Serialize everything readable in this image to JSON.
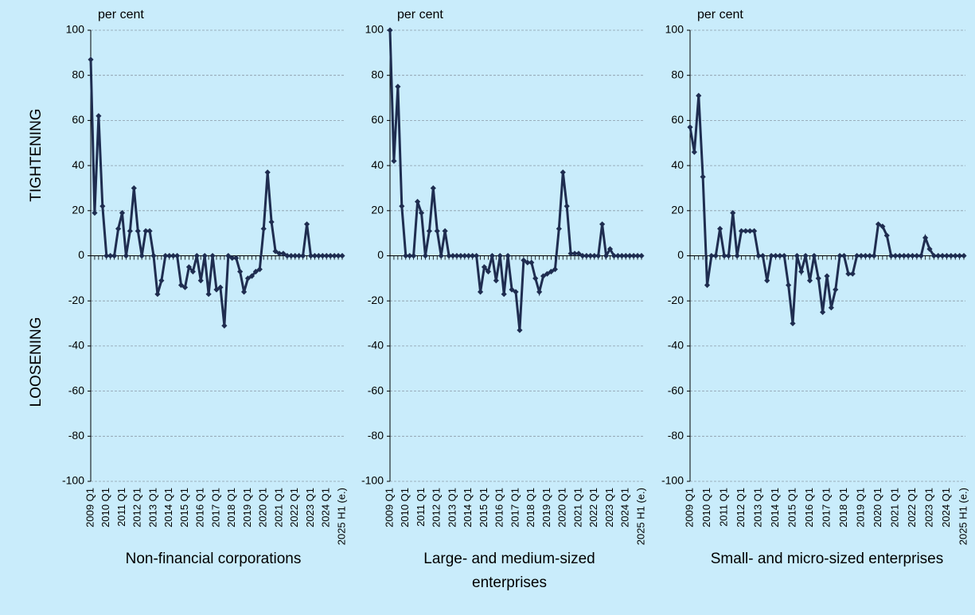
{
  "chart_data": [
    {
      "type": "line",
      "title": "Non-financial corporations",
      "y_unit": "per cent",
      "annotations": [
        "TIGHTENING",
        "LOOSENING"
      ],
      "categories": [
        "2009 Q1",
        null,
        null,
        null,
        "2010 Q1",
        null,
        null,
        null,
        "2011 Q1",
        null,
        null,
        null,
        "2012 Q1",
        null,
        null,
        null,
        "2013 Q1",
        null,
        null,
        null,
        "2014 Q1",
        null,
        null,
        null,
        "2015 Q1",
        null,
        null,
        null,
        "2016 Q1",
        null,
        null,
        null,
        "2017 Q1",
        null,
        null,
        null,
        "2018 Q1",
        null,
        null,
        null,
        "2019 Q1",
        null,
        null,
        null,
        "2020 Q1",
        null,
        null,
        null,
        "2021 Q1",
        null,
        null,
        null,
        "2022 Q1",
        null,
        null,
        null,
        "2023 Q1",
        null,
        null,
        null,
        "2024 Q1",
        null,
        null,
        null,
        "2025 H1 (e.)"
      ],
      "values": [
        87,
        19,
        62,
        22,
        0,
        0,
        0,
        12,
        19,
        0,
        11,
        30,
        11,
        0,
        11,
        11,
        0,
        -17,
        -11,
        0,
        0,
        0,
        0,
        -13,
        -14,
        -5,
        -7,
        0,
        -11,
        0,
        -17,
        0,
        -15,
        -14,
        -31,
        0,
        -1,
        -1,
        -7,
        -16,
        -10,
        -9,
        -7,
        -6,
        12,
        37,
        15,
        2,
        1,
        1,
        0,
        0,
        0,
        0,
        0,
        14,
        0,
        0,
        0,
        0,
        0,
        0,
        0,
        0,
        0
      ],
      "color": "#1f2d50",
      "ylim": [
        -100,
        100
      ],
      "yticks": [
        -100,
        -80,
        -60,
        -40,
        -20,
        0,
        20,
        40,
        60,
        80,
        100
      ],
      "grid": true
    },
    {
      "type": "line",
      "title": "Large- and medium-sized enterprises",
      "y_unit": "per cent",
      "categories": [
        "2009 Q1",
        null,
        null,
        null,
        "2010 Q1",
        null,
        null,
        null,
        "2011 Q1",
        null,
        null,
        null,
        "2012 Q1",
        null,
        null,
        null,
        "2013 Q1",
        null,
        null,
        null,
        "2014 Q1",
        null,
        null,
        null,
        "2015 Q1",
        null,
        null,
        null,
        "2016 Q1",
        null,
        null,
        null,
        "2017 Q1",
        null,
        null,
        null,
        "2018 Q1",
        null,
        null,
        null,
        "2019 Q1",
        null,
        null,
        null,
        "2020 Q1",
        null,
        null,
        null,
        "2021 Q1",
        null,
        null,
        null,
        "2022 Q1",
        null,
        null,
        null,
        "2023 Q1",
        null,
        null,
        null,
        "2024 Q1",
        null,
        null,
        null,
        "2025 H1 (e.)"
      ],
      "values": [
        100,
        42,
        75,
        22,
        0,
        0,
        0,
        24,
        19,
        0,
        11,
        30,
        11,
        0,
        11,
        0,
        0,
        0,
        0,
        0,
        0,
        0,
        0,
        -16,
        -5,
        -7,
        0,
        -11,
        0,
        -17,
        0,
        -15,
        -16,
        -33,
        -2,
        -3,
        -3,
        -10,
        -16,
        -9,
        -8,
        -7,
        -6,
        12,
        37,
        22,
        1,
        1,
        1,
        0,
        0,
        0,
        0,
        0,
        14,
        0,
        3,
        0,
        0,
        0,
        0,
        0,
        0,
        0,
        0
      ],
      "color": "#1f2d50",
      "ylim": [
        -100,
        100
      ],
      "yticks": [
        -100,
        -80,
        -60,
        -40,
        -20,
        0,
        20,
        40,
        60,
        80,
        100
      ],
      "grid": true
    },
    {
      "type": "line",
      "title": "Small- and micro-sized enterprises",
      "y_unit": "per cent",
      "categories": [
        "2009 Q1",
        null,
        null,
        null,
        "2010 Q1",
        null,
        null,
        null,
        "2011 Q1",
        null,
        null,
        null,
        "2012 Q1",
        null,
        null,
        null,
        "2013 Q1",
        null,
        null,
        null,
        "2014 Q1",
        null,
        null,
        null,
        "2015 Q1",
        null,
        null,
        null,
        "2016 Q1",
        null,
        null,
        null,
        "2017 Q1",
        null,
        null,
        null,
        "2018 Q1",
        null,
        null,
        null,
        "2019 Q1",
        null,
        null,
        null,
        "2020 Q1",
        null,
        null,
        null,
        "2021 Q1",
        null,
        null,
        null,
        "2022 Q1",
        null,
        null,
        null,
        "2023 Q1",
        null,
        null,
        null,
        "2024 Q1",
        null,
        null,
        null,
        "2025 H1 (e.)"
      ],
      "values": [
        57,
        46,
        71,
        35,
        -13,
        0,
        0,
        12,
        0,
        0,
        19,
        0,
        11,
        11,
        11,
        11,
        0,
        0,
        -11,
        0,
        0,
        0,
        0,
        -13,
        -30,
        0,
        -7,
        0,
        -11,
        0,
        -10,
        -25,
        -9,
        -23,
        -15,
        0,
        0,
        -8,
        -8,
        0,
        0,
        0,
        0,
        0,
        14,
        13,
        9,
        0,
        0,
        0,
        0,
        0,
        0,
        0,
        0,
        8,
        3,
        0,
        0,
        0,
        0,
        0,
        0,
        0,
        0
      ],
      "color": "#1f2d50",
      "ylim": [
        -100,
        100
      ],
      "yticks": [
        -100,
        -80,
        -60,
        -40,
        -20,
        0,
        20,
        40,
        60,
        80,
        100
      ],
      "grid": true
    }
  ]
}
